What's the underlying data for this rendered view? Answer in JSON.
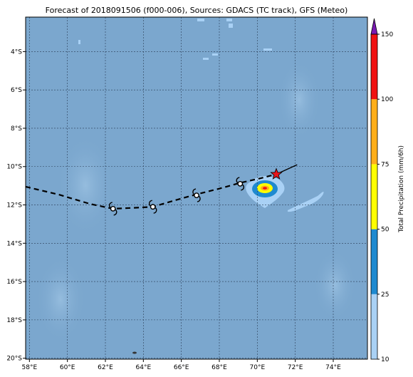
{
  "title": "Forecast of 2018091506 (f000-006), Sources: GDACS (TC track), GFS (Meteo)",
  "map": {
    "lon_range": [
      57.8,
      75.8
    ],
    "lat_range": [
      -20.05,
      -2.2
    ],
    "lon_ticks": [
      "58°E",
      "60°E",
      "62°E",
      "64°E",
      "66°E",
      "68°E",
      "70°E",
      "72°E",
      "74°E"
    ],
    "lon_tick_values": [
      58,
      60,
      62,
      64,
      66,
      68,
      70,
      72,
      74
    ],
    "lat_ticks": [
      "4°S",
      "6°S",
      "8°S",
      "10°S",
      "12°S",
      "14°S",
      "16°S",
      "18°S",
      "20°S"
    ],
    "lat_tick_values": [
      -4,
      -6,
      -8,
      -10,
      -12,
      -14,
      -16,
      -18,
      -20
    ],
    "background_color": "#7BA7CE"
  },
  "track": {
    "past_dashed": [
      [
        57.8,
        -11.05
      ],
      [
        59.5,
        -11.45
      ],
      [
        61.2,
        -11.95
      ],
      [
        62.4,
        -12.2
      ],
      [
        63.5,
        -12.15
      ],
      [
        64.5,
        -12.1
      ],
      [
        65.7,
        -11.75
      ],
      [
        66.8,
        -11.45
      ],
      [
        68.0,
        -11.15
      ],
      [
        69.1,
        -10.85
      ],
      [
        70.2,
        -10.6
      ],
      [
        71.0,
        -10.4
      ]
    ],
    "forecast_solid": [
      [
        71.0,
        -10.4
      ],
      [
        72.1,
        -9.9
      ]
    ],
    "symbols": [
      [
        62.4,
        -12.2
      ],
      [
        64.5,
        -12.1
      ],
      [
        66.8,
        -11.5
      ],
      [
        69.1,
        -10.9
      ]
    ],
    "current_position": [
      71.0,
      -10.4
    ],
    "star_color": "#e8141b"
  },
  "colorbar": {
    "label": "Total Precipitation (mm/6h)",
    "ticks": [
      "10",
      "25",
      "50",
      "75",
      "100",
      "150"
    ],
    "bands": [
      {
        "from": 10,
        "to": 25,
        "color": "#a9d1f5"
      },
      {
        "from": 25,
        "to": 50,
        "color": "#1f8ad0"
      },
      {
        "from": 50,
        "to": 75,
        "color": "#ffff00"
      },
      {
        "from": 75,
        "to": 100,
        "color": "#ffae1a"
      },
      {
        "from": 100,
        "to": 150,
        "color": "#f01212"
      },
      {
        "from": 150,
        "to": 175,
        "color": "#7a1ab3"
      }
    ]
  }
}
